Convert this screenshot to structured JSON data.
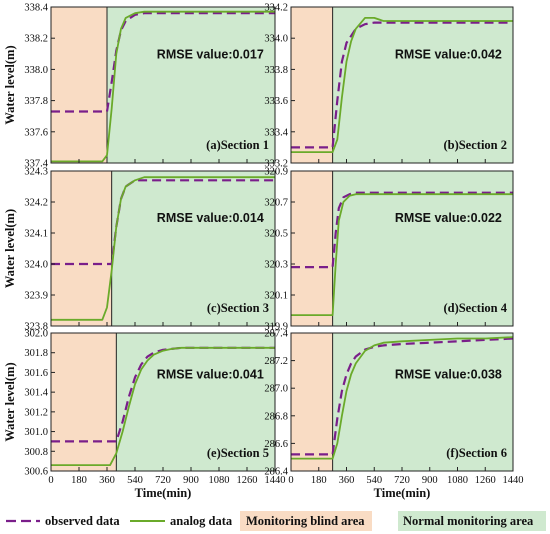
{
  "legend": {
    "observed": "observed data",
    "analog": "analog data",
    "blind": "Monitoring blind area",
    "normal": "Normal monitoring area"
  },
  "colors": {
    "observed": "#7a1e8a",
    "analog": "#6aaa2a",
    "blind": "#f9dcc4",
    "normal": "#cfe9cf"
  },
  "chart_data": [
    {
      "type": "line",
      "section_label": "(a)Section 1",
      "annotation": "RMSE value:0.017",
      "ylabel": "Water level(m)",
      "xlabel": "",
      "xlim": [
        0,
        1440
      ],
      "ylim": [
        337.4,
        338.4
      ],
      "yticks": [
        "337.4",
        "337.6",
        "337.8",
        "338.0",
        "338.2",
        "338.4"
      ],
      "xticks": [],
      "blind_area": [
        0,
        360
      ],
      "series": [
        {
          "name": "observed data",
          "x": [
            0,
            360,
            390,
            420,
            450,
            480,
            540,
            600,
            720,
            900,
            1080,
            1260,
            1440
          ],
          "y": [
            337.73,
            337.73,
            337.92,
            338.12,
            338.25,
            338.31,
            338.35,
            338.36,
            338.36,
            338.36,
            338.36,
            338.36,
            338.36
          ]
        },
        {
          "name": "analog data",
          "x": [
            0,
            330,
            360,
            390,
            420,
            450,
            480,
            540,
            600,
            720,
            900,
            1080,
            1260,
            1440
          ],
          "y": [
            337.41,
            337.41,
            337.45,
            337.75,
            338.1,
            338.26,
            338.33,
            338.36,
            338.37,
            338.37,
            338.37,
            338.37,
            338.37,
            338.37
          ]
        }
      ]
    },
    {
      "type": "line",
      "section_label": "(b)Section 2",
      "annotation": "RMSE value:0.042",
      "ylabel": "",
      "xlabel": "",
      "xlim": [
        0,
        1440
      ],
      "ylim": [
        333.2,
        334.2
      ],
      "yticks": [
        "333.2",
        "333.4",
        "333.6",
        "333.8",
        "334.0",
        "334.2"
      ],
      "xticks": [],
      "blind_area": [
        0,
        270
      ],
      "series": [
        {
          "name": "observed data",
          "x": [
            0,
            270,
            300,
            330,
            360,
            420,
            480,
            540,
            600,
            720,
            900,
            1080,
            1260,
            1440
          ],
          "y": [
            333.3,
            333.3,
            333.6,
            333.85,
            333.97,
            334.06,
            334.09,
            334.1,
            334.1,
            334.1,
            334.1,
            334.1,
            334.1,
            334.1
          ]
        },
        {
          "name": "analog data",
          "x": [
            0,
            270,
            300,
            330,
            360,
            390,
            420,
            480,
            540,
            600,
            720,
            900,
            1080,
            1260,
            1440
          ],
          "y": [
            333.27,
            333.27,
            333.35,
            333.62,
            333.85,
            333.98,
            334.06,
            334.13,
            334.13,
            334.11,
            334.11,
            334.11,
            334.11,
            334.11,
            334.11
          ]
        }
      ]
    },
    {
      "type": "line",
      "section_label": "(c)Section 3",
      "annotation": "RMSE value:0.014",
      "ylabel": "Water level(m)",
      "xlabel": "",
      "xlim": [
        0,
        1440
      ],
      "ylim": [
        323.8,
        324.3
      ],
      "yticks": [
        "323.8",
        "323.9",
        "324.0",
        "324.1",
        "324.2",
        "324.3"
      ],
      "xticks": [],
      "blind_area": [
        0,
        390
      ],
      "series": [
        {
          "name": "observed data",
          "x": [
            0,
            390,
            420,
            450,
            480,
            540,
            600,
            720,
            900,
            1080,
            1260,
            1440
          ],
          "y": [
            324.0,
            324.0,
            324.12,
            324.21,
            324.25,
            324.27,
            324.27,
            324.27,
            324.27,
            324.27,
            324.27,
            324.27
          ]
        },
        {
          "name": "analog data",
          "x": [
            0,
            330,
            360,
            390,
            420,
            450,
            480,
            540,
            600,
            720,
            900,
            1080,
            1260,
            1440
          ],
          "y": [
            323.82,
            323.82,
            323.86,
            323.98,
            324.12,
            324.21,
            324.25,
            324.27,
            324.28,
            324.28,
            324.28,
            324.28,
            324.28,
            324.28
          ]
        }
      ]
    },
    {
      "type": "line",
      "section_label": "(d)Section 4",
      "annotation": "RMSE value:0.022",
      "ylabel": "",
      "xlabel": "",
      "xlim": [
        0,
        1440
      ],
      "ylim": [
        319.9,
        320.9
      ],
      "yticks": [
        "319.9",
        "320.1",
        "320.3",
        "320.5",
        "320.7",
        "320.9"
      ],
      "xticks": [],
      "blind_area": [
        0,
        270
      ],
      "series": [
        {
          "name": "observed data",
          "x": [
            0,
            270,
            290,
            310,
            340,
            380,
            420,
            480,
            600,
            720,
            900,
            1080,
            1260,
            1440
          ],
          "y": [
            320.28,
            320.28,
            320.5,
            320.66,
            320.73,
            320.75,
            320.76,
            320.76,
            320.76,
            320.76,
            320.76,
            320.76,
            320.76,
            320.76
          ]
        },
        {
          "name": "analog data",
          "x": [
            0,
            270,
            290,
            310,
            340,
            380,
            420,
            480,
            600,
            720,
            900,
            1080,
            1260,
            1440
          ],
          "y": [
            319.97,
            319.97,
            320.3,
            320.58,
            320.7,
            320.74,
            320.75,
            320.75,
            320.75,
            320.75,
            320.75,
            320.75,
            320.75,
            320.75
          ]
        }
      ]
    },
    {
      "type": "line",
      "section_label": "(e)Section 5",
      "annotation": "RMSE value:0.041",
      "ylabel": "Water level(m)",
      "xlabel": "Time(min)",
      "xlim": [
        0,
        1440
      ],
      "ylim": [
        300.6,
        302.0
      ],
      "yticks": [
        "300.6",
        "300.8",
        "301.0",
        "301.2",
        "301.4",
        "301.6",
        "301.8",
        "302.0"
      ],
      "xticks": [
        "0",
        "180",
        "360",
        "540",
        "720",
        "900",
        "1080",
        "1260",
        "1440"
      ],
      "blind_area": [
        0,
        420
      ],
      "series": [
        {
          "name": "observed data",
          "x": [
            0,
            420,
            460,
            500,
            540,
            580,
            620,
            660,
            720,
            780,
            840,
            900,
            1080,
            1260,
            1440
          ],
          "y": [
            300.9,
            300.9,
            301.1,
            301.35,
            301.55,
            301.68,
            301.76,
            301.8,
            301.83,
            301.84,
            301.85,
            301.85,
            301.85,
            301.85,
            301.85
          ]
        },
        {
          "name": "analog data",
          "x": [
            0,
            380,
            420,
            460,
            500,
            540,
            580,
            620,
            660,
            720,
            780,
            840,
            900,
            1080,
            1260,
            1440
          ],
          "y": [
            300.66,
            300.66,
            300.78,
            301.0,
            301.25,
            301.48,
            301.63,
            301.72,
            301.78,
            301.82,
            301.84,
            301.85,
            301.85,
            301.85,
            301.85,
            301.85
          ]
        }
      ]
    },
    {
      "type": "line",
      "section_label": "(f)Section 6",
      "annotation": "RMSE value:0.038",
      "ylabel": "",
      "xlabel": "Time(min)",
      "xlim": [
        0,
        1440
      ],
      "ylim": [
        286.4,
        287.4
      ],
      "yticks": [
        "286.4",
        "286.6",
        "286.8",
        "287.0",
        "287.2",
        "287.4"
      ],
      "xticks": [
        "0",
        "180",
        "360",
        "540",
        "720",
        "900",
        "1080",
        "1260",
        "1440"
      ],
      "blind_area": [
        0,
        270
      ],
      "series": [
        {
          "name": "observed data",
          "x": [
            0,
            270,
            300,
            330,
            360,
            390,
            420,
            480,
            540,
            600,
            720,
            900,
            1080,
            1260,
            1440
          ],
          "y": [
            286.52,
            286.52,
            286.78,
            286.98,
            287.1,
            287.18,
            287.23,
            287.28,
            287.3,
            287.31,
            287.32,
            287.33,
            287.34,
            287.35,
            287.36
          ]
        },
        {
          "name": "analog data",
          "x": [
            0,
            270,
            300,
            330,
            360,
            390,
            420,
            480,
            540,
            600,
            720,
            900,
            1080,
            1260,
            1440
          ],
          "y": [
            286.49,
            286.49,
            286.6,
            286.8,
            286.98,
            287.1,
            287.18,
            287.27,
            287.31,
            287.33,
            287.34,
            287.35,
            287.36,
            287.36,
            287.37
          ]
        }
      ]
    }
  ]
}
